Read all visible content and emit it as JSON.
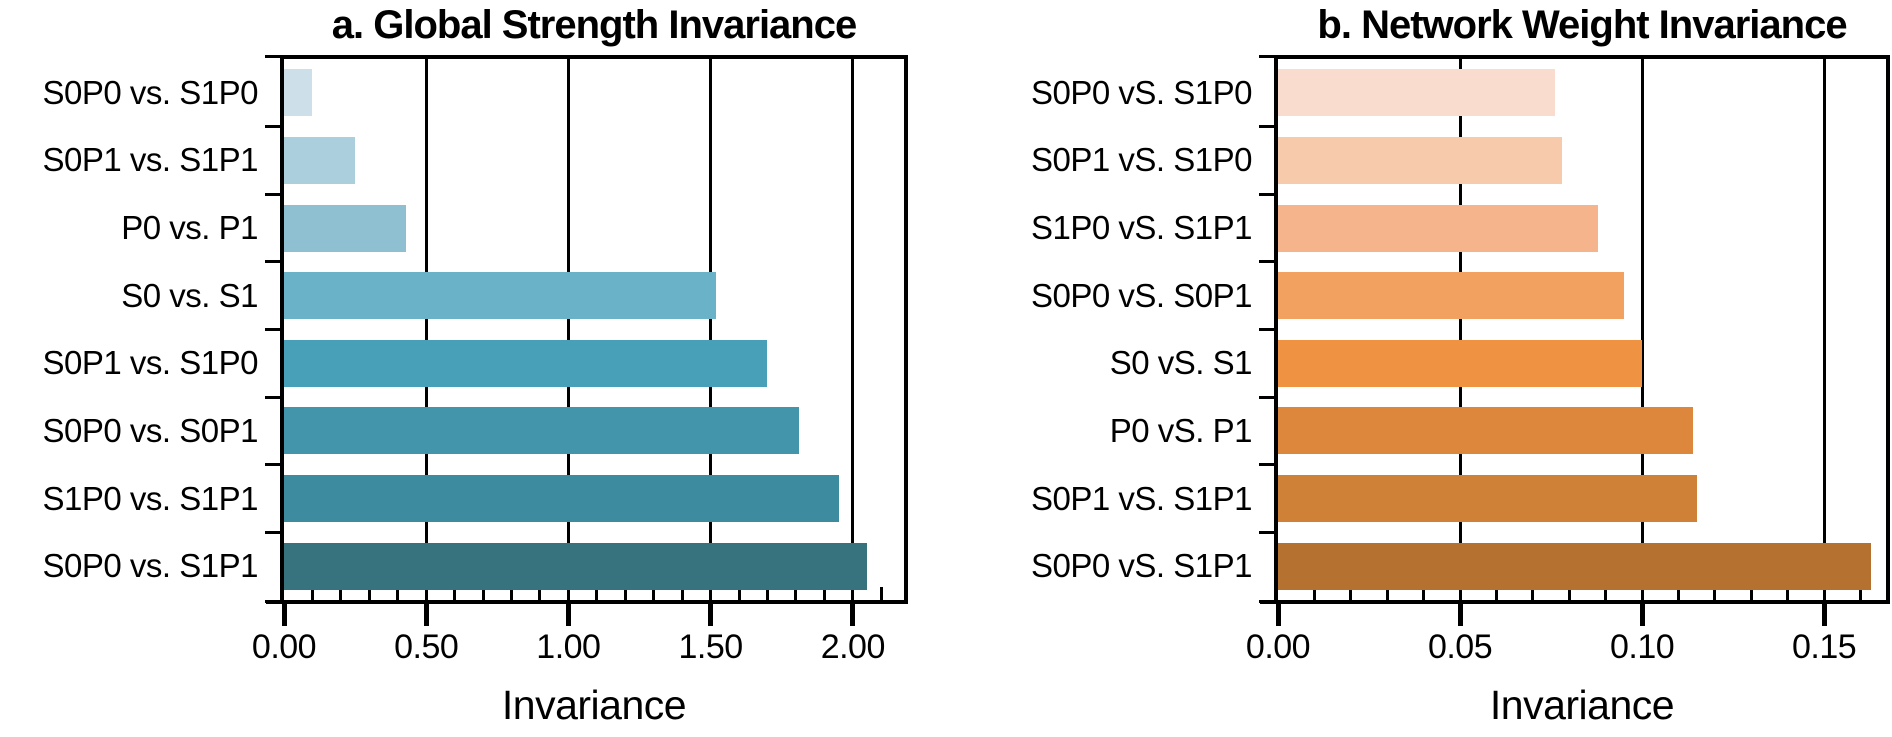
{
  "figure": {
    "background": "#ffffff",
    "text_color": "#000000",
    "axis_color": "#000000"
  },
  "chart_data": [
    {
      "panel": "a",
      "type": "bar",
      "orientation": "horizontal",
      "title": "a. Global Strength Invariance",
      "xlabel": "Invariance",
      "categories": [
        "S0P0 vs. S1P0",
        "S0P1 vs. S1P1",
        "P0 vs. P1",
        "S0 vs. S1",
        "S0P1 vs. S1P0",
        "S0P0 vs. S0P1",
        "S1P0 vs. S1P1",
        "S0P0 vs. S1P1"
      ],
      "values": [
        0.1,
        0.25,
        0.43,
        1.52,
        1.7,
        1.81,
        1.95,
        2.05
      ],
      "bar_colors": [
        "#cde0ea",
        "#abcfdd",
        "#8fc0d2",
        "#6ab2c8",
        "#47a0b8",
        "#4295aa",
        "#3d8b9e",
        "#37737f"
      ],
      "xlim": [
        0,
        2.18
      ],
      "xticks": [
        0,
        0.5,
        1.0,
        1.5,
        2.0
      ],
      "xtick_labels": [
        "0.00",
        "0.50",
        "1.00",
        "1.50",
        "2.00"
      ],
      "minor_tick_step": 0.1,
      "grid": "vertical-major-gridlines",
      "legend": null
    },
    {
      "panel": "b",
      "type": "bar",
      "orientation": "horizontal",
      "title": "b. Network Weight Invariance",
      "xlabel": "Invariance",
      "categories": [
        "S0P0 vS. S1P0",
        "S0P1 vS. S1P0",
        "S1P0 vS. S1P1",
        "S0P0 vS. S0P1",
        "S0 vS. S1",
        "P0 vS. P1",
        "S0P1 vS. S1P1",
        "S0P0 vS. S1P1"
      ],
      "values": [
        0.076,
        0.078,
        0.088,
        0.095,
        0.1,
        0.114,
        0.115,
        0.163
      ],
      "bar_colors": [
        "#f9dccd",
        "#f8caac",
        "#f5b48c",
        "#f3a160",
        "#ef9242",
        "#dd873d",
        "#d08138",
        "#b5712f"
      ],
      "xlim": [
        0,
        0.167
      ],
      "xticks": [
        0,
        0.05,
        0.1,
        0.15
      ],
      "xtick_labels": [
        "0.00",
        "0.05",
        "0.10",
        "0.15"
      ],
      "minor_tick_step": 0.01,
      "grid": "vertical-major-gridlines",
      "legend": null
    }
  ]
}
